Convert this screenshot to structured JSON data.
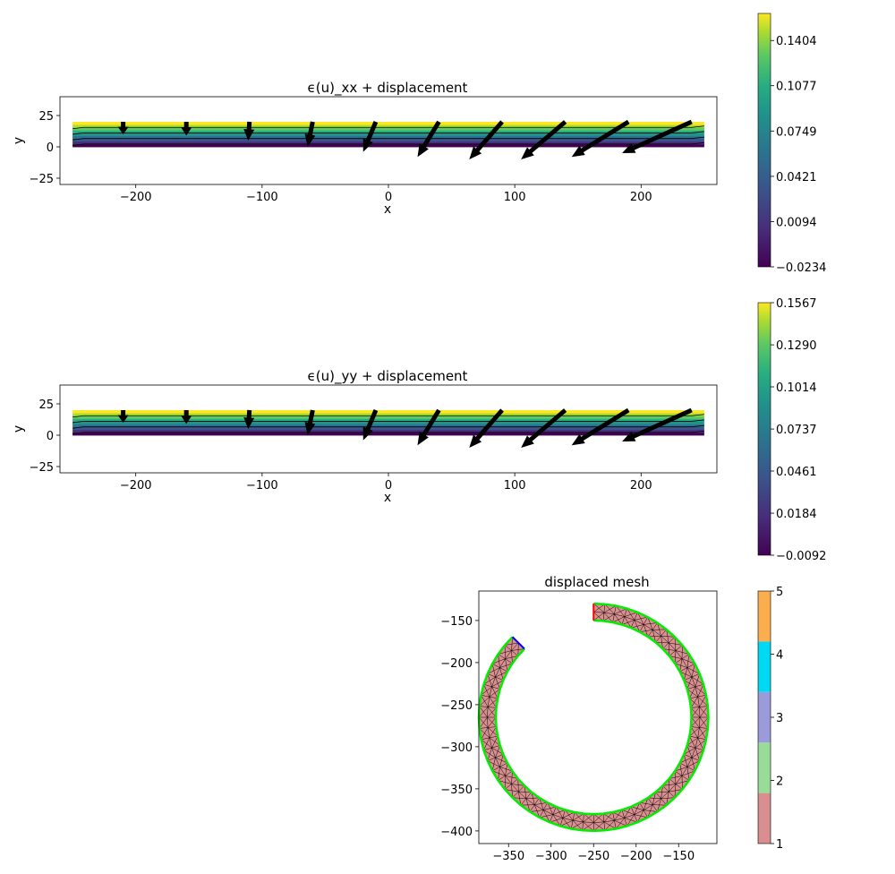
{
  "chart_data": [
    {
      "type": "contour",
      "title": "ϵ(u)_xx + displacement",
      "xlabel": "x",
      "ylabel": "y",
      "xlim": [
        -260,
        260
      ],
      "ylim": [
        -30,
        40
      ],
      "xticks": [
        -200,
        -100,
        0,
        100,
        200
      ],
      "yticks": [
        -25,
        0,
        25
      ],
      "domain": {
        "x": [
          -250,
          250
        ],
        "y": [
          0,
          20
        ]
      },
      "colorbar": {
        "colormap": "viridis",
        "range": [
          -0.0234,
          0.16
        ],
        "ticks": [
          "0.1404",
          "0.1077",
          "0.0749",
          "0.0421",
          "0.0094",
          "−0.0234"
        ]
      },
      "arrows": [
        {
          "x": -210,
          "y": 20,
          "dx": 0,
          "dy": -10
        },
        {
          "x": -160,
          "y": 20,
          "dx": 0,
          "dy": -11
        },
        {
          "x": -110,
          "y": 20,
          "dx": -1,
          "dy": -15
        },
        {
          "x": -60,
          "y": 20,
          "dx": -4,
          "dy": -20
        },
        {
          "x": -10,
          "y": 20,
          "dx": -10,
          "dy": -24
        },
        {
          "x": 40,
          "y": 20,
          "dx": -17,
          "dy": -28
        },
        {
          "x": 90,
          "y": 20,
          "dx": -26,
          "dy": -30
        },
        {
          "x": 140,
          "y": 20,
          "dx": -35,
          "dy": -30
        },
        {
          "x": 190,
          "y": 20,
          "dx": -45,
          "dy": -28
        },
        {
          "x": 240,
          "y": 20,
          "dx": -55,
          "dy": -25
        }
      ]
    },
    {
      "type": "contour",
      "title": "ϵ(u)_yy + displacement",
      "xlabel": "x",
      "ylabel": "y",
      "xlim": [
        -260,
        260
      ],
      "ylim": [
        -30,
        40
      ],
      "xticks": [
        -200,
        -100,
        0,
        100,
        200
      ],
      "yticks": [
        -25,
        0,
        25
      ],
      "domain": {
        "x": [
          -250,
          250
        ],
        "y": [
          0,
          20
        ]
      },
      "colorbar": {
        "colormap": "viridis",
        "range": [
          -0.0092,
          0.1567
        ],
        "ticks": [
          "0.1567",
          "0.1290",
          "0.1014",
          "0.0737",
          "0.0461",
          "0.0184",
          "−0.0092"
        ]
      },
      "arrows": [
        {
          "x": -210,
          "y": 20,
          "dx": 0,
          "dy": -10
        },
        {
          "x": -160,
          "y": 20,
          "dx": 0,
          "dy": -11
        },
        {
          "x": -110,
          "y": 20,
          "dx": -1,
          "dy": -15
        },
        {
          "x": -60,
          "y": 20,
          "dx": -4,
          "dy": -20
        },
        {
          "x": -10,
          "y": 20,
          "dx": -10,
          "dy": -24
        },
        {
          "x": 40,
          "y": 20,
          "dx": -17,
          "dy": -28
        },
        {
          "x": 90,
          "y": 20,
          "dx": -26,
          "dy": -30
        },
        {
          "x": 140,
          "y": 20,
          "dx": -35,
          "dy": -30
        },
        {
          "x": 190,
          "y": 20,
          "dx": -45,
          "dy": -28
        },
        {
          "x": 240,
          "y": 20,
          "dx": -55,
          "dy": -25
        }
      ]
    },
    {
      "type": "mesh",
      "title": "displaced mesh",
      "xlim": [
        -385,
        -105
      ],
      "ylim": [
        -415,
        -115
      ],
      "xticks": [
        -350,
        -300,
        -250,
        -200,
        -150
      ],
      "yticks": [
        -150,
        -200,
        -250,
        -300,
        -350,
        -400
      ],
      "ring": {
        "center": [
          -250,
          -265
        ],
        "r_inner": 115,
        "r_outer": 135,
        "theta_start_deg": 90,
        "theta_end_deg": -225
      },
      "mesh_fill": "#d98f8f",
      "outline_color": "#00ee00",
      "start_edge_color": "#ff0000",
      "end_edge_color": "#0000ff",
      "colorbar": {
        "categories": [
          "1",
          "2",
          "3",
          "4",
          "5"
        ],
        "colors": [
          "#d98f8f",
          "#98dc98",
          "#9b9bdc",
          "#00d8f4",
          "#fcae4e"
        ]
      }
    }
  ]
}
